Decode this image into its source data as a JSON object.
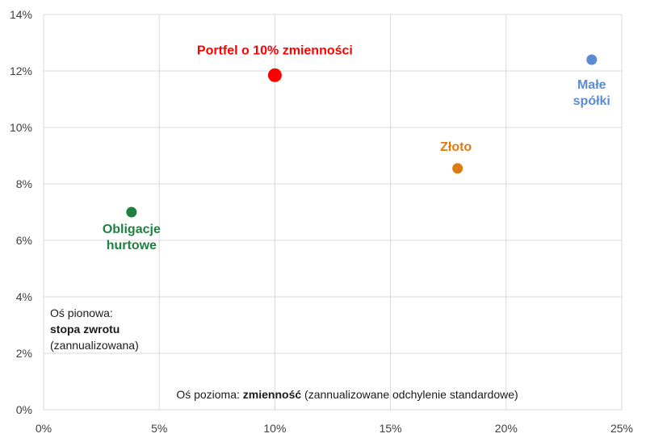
{
  "chart_data": {
    "type": "scatter",
    "xlim": [
      0,
      25
    ],
    "ylim": [
      0,
      14
    ],
    "x_ticks": [
      "0%",
      "5%",
      "10%",
      "15%",
      "20%",
      "25%"
    ],
    "y_ticks": [
      "0%",
      "2%",
      "4%",
      "6%",
      "8%",
      "10%",
      "12%",
      "14%"
    ],
    "grid": true,
    "points": [
      {
        "label_lines": [
          "Portfel o 10% zmienności"
        ],
        "x": 10.0,
        "y": 11.85,
        "color": "#ff0000",
        "size": "large"
      },
      {
        "label_lines": [
          "Małe",
          "spółki"
        ],
        "x": 23.7,
        "y": 12.4,
        "color": "#5b8bd1",
        "size": "normal"
      },
      {
        "label_lines": [
          "Złoto"
        ],
        "x": 17.9,
        "y": 8.55,
        "color": "#e07b12",
        "size": "normal"
      },
      {
        "label_lines": [
          "Obligacje",
          "hurtowe"
        ],
        "x": 3.8,
        "y": 7.0,
        "color": "#1f8040",
        "size": "normal"
      }
    ],
    "y_axis_note": {
      "line1": "Oś pionowa:",
      "line2_bold": "stopa zwrotu",
      "line3": "(zannualizowana)"
    },
    "x_axis_note": {
      "prefix": "Oś pozioma: ",
      "bold": "zmienność",
      "suffix": " (zannualizowane odchylenie standardowe)"
    }
  }
}
